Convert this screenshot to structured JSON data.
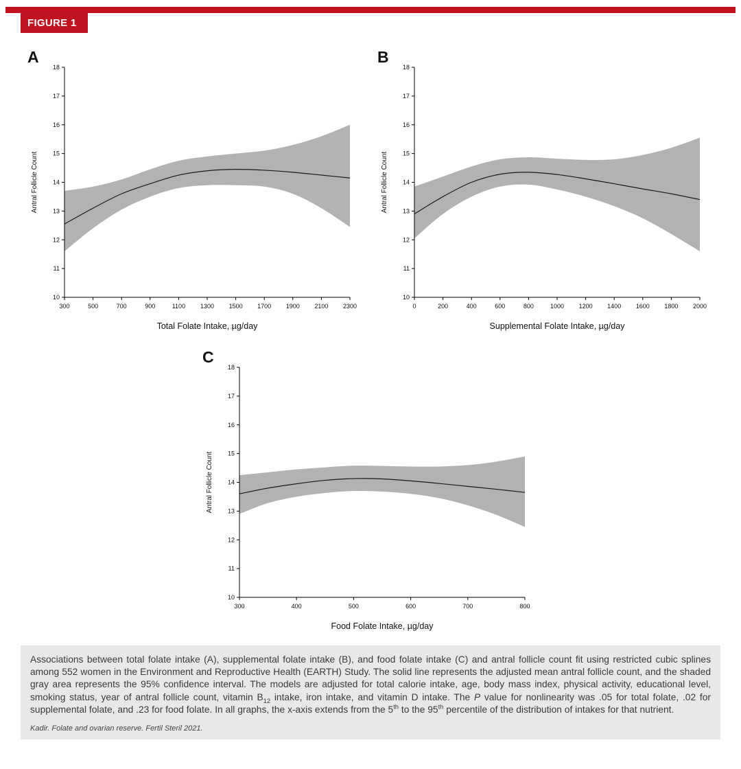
{
  "figure": {
    "label": "FIGURE 1"
  },
  "colors": {
    "accent_red": "#C0131F",
    "band_gray": "#B2B2B2",
    "line_black": "#1A1A1A",
    "caption_bg": "#E8E8E8"
  },
  "caption": {
    "segments": [
      {
        "t": "Associations between total folate intake (A), supplemental folate intake (B), and food folate intake (C) and antral follicle count fit using restricted cubic splines among 552 women in the Environment and Reproductive Health (EARTH) Study. The solid line represents the adjusted mean antral follicle count, and the shaded gray area represents the 95% confidence interval. The models are adjusted for total calorie intake, age, body mass index, physical activity, educational level, smoking status, year of antral follicle count, vitamin B"
      },
      {
        "t": "12",
        "sub": true
      },
      {
        "t": " intake, iron intake, and vitamin D intake. The "
      },
      {
        "t": "P",
        "i": true
      },
      {
        "t": " value for nonlinearity was .05 for total folate, .02 for supplemental folate, and .23 for food folate. In all graphs, the x-axis extends from the 5"
      },
      {
        "t": "th",
        "sup": true
      },
      {
        "t": " to the 95"
      },
      {
        "t": "th",
        "sup": true
      },
      {
        "t": " percentile of the distribution of intakes for that nutrient."
      }
    ],
    "credit": "Kadir. Folate and ovarian reserve. Fertil Steril 2021."
  },
  "chart_data": [
    {
      "type": "line",
      "panel": "A",
      "title": "",
      "xlabel": "Total Folate Intake, µg/day",
      "ylabel": "Antral Follicle Count",
      "xlim": [
        300,
        2300
      ],
      "ylim": [
        10,
        18
      ],
      "xticks": [
        300,
        500,
        700,
        900,
        1100,
        1300,
        1500,
        1700,
        1900,
        2100,
        2300
      ],
      "yticks": [
        10,
        11,
        12,
        13,
        14,
        15,
        16,
        17,
        18
      ],
      "grid": false,
      "legend": "none",
      "band_color": "#B2B2B2",
      "line_color": "#1A1A1A",
      "x": [
        300,
        500,
        700,
        900,
        1100,
        1300,
        1500,
        1700,
        1900,
        2100,
        2300
      ],
      "series": [
        {
          "name": "Adjusted mean antral follicle count",
          "values": [
            12.55,
            13.1,
            13.6,
            13.95,
            14.25,
            14.4,
            14.45,
            14.42,
            14.35,
            14.25,
            14.15
          ]
        },
        {
          "name": "95% CI lower",
          "values": [
            11.6,
            12.4,
            13.05,
            13.5,
            13.8,
            13.9,
            13.9,
            13.85,
            13.6,
            13.1,
            12.45
          ]
        },
        {
          "name": "95% CI upper",
          "values": [
            13.7,
            13.85,
            14.1,
            14.45,
            14.75,
            14.9,
            15.0,
            15.1,
            15.3,
            15.6,
            16.0
          ]
        }
      ]
    },
    {
      "type": "line",
      "panel": "B",
      "title": "",
      "xlabel": "Supplemental Folate Intake, µg/day",
      "ylabel": "Antral Follicle Count",
      "xlim": [
        0,
        2000
      ],
      "ylim": [
        10,
        18
      ],
      "xticks": [
        0,
        200,
        400,
        600,
        800,
        1000,
        1200,
        1400,
        1600,
        1800,
        2000
      ],
      "yticks": [
        10,
        11,
        12,
        13,
        14,
        15,
        16,
        17,
        18
      ],
      "grid": false,
      "legend": "none",
      "band_color": "#B2B2B2",
      "line_color": "#1A1A1A",
      "x": [
        0,
        200,
        400,
        600,
        800,
        1000,
        1200,
        1400,
        1600,
        1800,
        2000
      ],
      "series": [
        {
          "name": "Adjusted mean antral follicle count",
          "values": [
            12.9,
            13.5,
            14.0,
            14.28,
            14.35,
            14.27,
            14.12,
            13.95,
            13.77,
            13.6,
            13.4
          ]
        },
        {
          "name": "95% CI lower",
          "values": [
            12.05,
            12.9,
            13.5,
            13.85,
            13.92,
            13.75,
            13.5,
            13.17,
            12.75,
            12.2,
            11.6
          ]
        },
        {
          "name": "95% CI upper",
          "values": [
            13.85,
            14.2,
            14.55,
            14.8,
            14.87,
            14.82,
            14.78,
            14.8,
            14.95,
            15.2,
            15.55
          ]
        }
      ]
    },
    {
      "type": "line",
      "panel": "C",
      "title": "",
      "xlabel": "Food Folate Intake, µg/day",
      "ylabel": "Antral Follicle Count",
      "xlim": [
        300,
        800
      ],
      "ylim": [
        10,
        18
      ],
      "xticks": [
        300,
        400,
        500,
        600,
        700,
        800
      ],
      "yticks": [
        10,
        11,
        12,
        13,
        14,
        15,
        16,
        17,
        18
      ],
      "grid": false,
      "legend": "none",
      "band_color": "#B2B2B2",
      "line_color": "#1A1A1A",
      "x": [
        300,
        350,
        400,
        450,
        500,
        550,
        600,
        650,
        700,
        750,
        800
      ],
      "series": [
        {
          "name": "Adjusted mean antral follicle count",
          "values": [
            13.6,
            13.8,
            13.95,
            14.07,
            14.13,
            14.12,
            14.05,
            13.96,
            13.86,
            13.76,
            13.65
          ]
        },
        {
          "name": "95% CI lower",
          "values": [
            12.9,
            13.28,
            13.5,
            13.63,
            13.7,
            13.68,
            13.6,
            13.45,
            13.2,
            12.87,
            12.45
          ]
        },
        {
          "name": "95% CI upper",
          "values": [
            14.25,
            14.35,
            14.45,
            14.52,
            14.58,
            14.57,
            14.55,
            14.55,
            14.6,
            14.72,
            14.9
          ]
        }
      ]
    }
  ]
}
